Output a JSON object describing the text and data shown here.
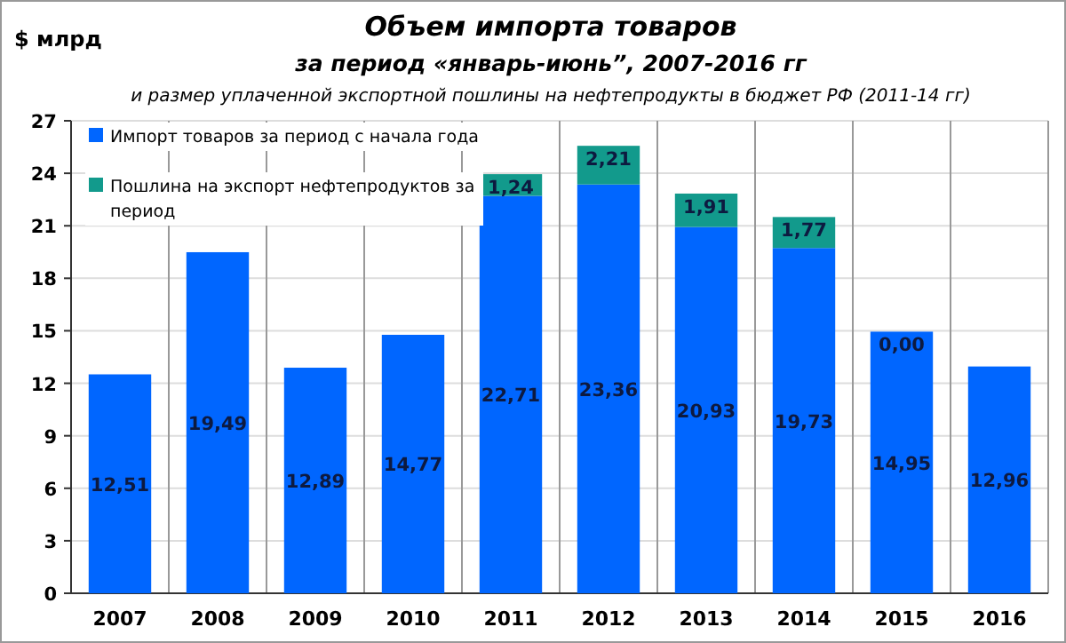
{
  "chart_data": {
    "type": "bar",
    "stacked": true,
    "title": "Объем импорта товаров\nза период «январь-июнь”, 2007-2016 гг",
    "subtitle": "и размер уплаченной экспортной пошлины на нефтепродукты  в бюджет РФ (2011-14 гг)",
    "ylabel": "$ млрд",
    "categories": [
      "2007",
      "2008",
      "2009",
      "2010",
      "2011",
      "2012",
      "2013",
      "2014",
      "2015",
      "2016"
    ],
    "series": [
      {
        "name": "Импорт товаров за период с начала года",
        "color": "#0066ff",
        "values": [
          12.51,
          19.49,
          12.89,
          14.77,
          22.71,
          23.36,
          20.93,
          19.73,
          14.95,
          12.96
        ],
        "value_labels": [
          "12,51",
          "19,49",
          "12,89",
          "14,77",
          "22,71",
          "23,36",
          "20,93",
          "19,73",
          "14,95",
          "12,96"
        ]
      },
      {
        "name": "Пошлина на экспорт нефтепродуктов за период",
        "color": "#129a8c",
        "values": [
          null,
          null,
          null,
          null,
          1.24,
          2.21,
          1.91,
          1.77,
          0.0,
          null
        ],
        "value_labels": [
          null,
          null,
          null,
          null,
          "1,24",
          "2,21",
          "1,91",
          "1,77",
          "0,00",
          null
        ]
      }
    ],
    "ylim": [
      0,
      27
    ],
    "yticks": [
      0,
      3,
      6,
      9,
      12,
      15,
      18,
      21,
      24,
      27
    ],
    "grid": true,
    "legend": "top left"
  }
}
